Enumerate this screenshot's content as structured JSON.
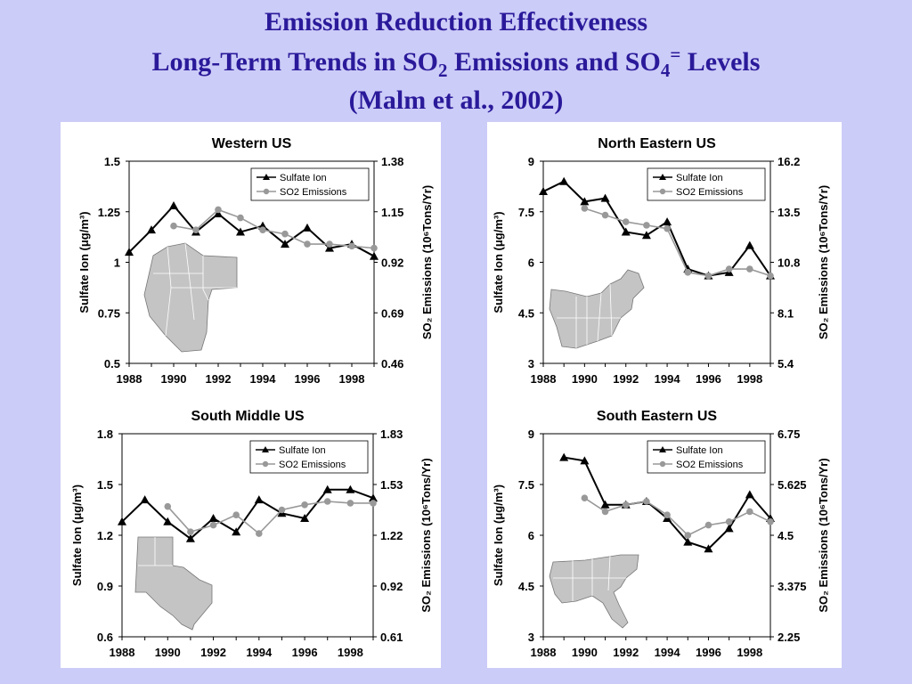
{
  "slide": {
    "title_line1": "Emission Reduction Effectiveness",
    "title_line2_a": "Long-Term Trends in SO",
    "title_line2_sub1": "2",
    "title_line2_b": " Emissions and SO",
    "title_line2_sub2": "4",
    "title_line2_sup": "=",
    "title_line2_c": " Levels",
    "title_line3": "(Malm et al., 2002)"
  },
  "chart_data": [
    {
      "type": "line",
      "title": "Western US",
      "ylabel": "Sulfate Ion (μg/m³)",
      "y2label": "SO₂ Emissions (10⁶Tons/Yr)",
      "ylim": [
        0.5,
        1.5
      ],
      "yticks": [
        "0.5",
        "0.75",
        "1",
        "1.25",
        "1.5"
      ],
      "y2ticks": [
        "0.46",
        "0.69",
        "0.92",
        "1.15",
        "1.38"
      ],
      "xlim": [
        1988,
        1999
      ],
      "xticks": [
        "1988",
        "1990",
        "1992",
        "1994",
        "1996",
        "1998"
      ],
      "legend": "top-right",
      "map_region": "western",
      "series": [
        {
          "name": "Sulfate Ion",
          "color": "#000000",
          "marker": "triangle",
          "axis": "left",
          "x": [
            1988,
            1989,
            1990,
            1991,
            1992,
            1993,
            1994,
            1995,
            1996,
            1997,
            1998,
            1999
          ],
          "values": [
            1.05,
            1.16,
            1.28,
            1.15,
            1.24,
            1.15,
            1.18,
            1.09,
            1.17,
            1.07,
            1.09,
            1.03
          ]
        },
        {
          "name": "SO2 Emissions",
          "color": "#999999",
          "marker": "circle",
          "axis": "left",
          "x": [
            1990,
            1991,
            1992,
            1993,
            1994,
            1995,
            1996,
            1997,
            1998,
            1999
          ],
          "values": [
            1.18,
            1.16,
            1.26,
            1.22,
            1.16,
            1.14,
            1.09,
            1.09,
            1.08,
            1.07
          ]
        }
      ]
    },
    {
      "type": "line",
      "title": "North Eastern US",
      "ylabel": "Sulfate Ion (μg/m³)",
      "y2label": "SO₂ Emissions (10⁶Tons/Yr)",
      "ylim": [
        3,
        9
      ],
      "yticks": [
        "3",
        "4.5",
        "6",
        "7.5",
        "9"
      ],
      "y2ticks": [
        "5.4",
        "8.1",
        "10.8",
        "13.5",
        "16.2"
      ],
      "xlim": [
        1988,
        1999
      ],
      "xticks": [
        "1988",
        "1990",
        "1992",
        "1994",
        "1996",
        "1998"
      ],
      "legend": "top-right",
      "map_region": "northeast",
      "series": [
        {
          "name": "Sulfate Ion",
          "color": "#000000",
          "marker": "triangle",
          "axis": "left",
          "x": [
            1988,
            1989,
            1990,
            1991,
            1992,
            1993,
            1994,
            1995,
            1996,
            1997,
            1998,
            1999
          ],
          "values": [
            8.1,
            8.4,
            7.8,
            7.9,
            6.9,
            6.8,
            7.2,
            5.8,
            5.6,
            5.7,
            6.5,
            5.6
          ]
        },
        {
          "name": "SO2 Emissions",
          "color": "#999999",
          "marker": "circle",
          "axis": "left",
          "x": [
            1990,
            1991,
            1992,
            1993,
            1994,
            1995,
            1996,
            1997,
            1998,
            1999
          ],
          "values": [
            7.6,
            7.4,
            7.2,
            7.1,
            7.0,
            5.7,
            5.6,
            5.8,
            5.8,
            5.6
          ]
        }
      ]
    },
    {
      "type": "line",
      "title": "South Middle US",
      "ylabel": "Sulfate Ion (μg/m³)",
      "y2label": "SO₂ Emissions (10⁶Tons/Yr)",
      "ylim": [
        0.6,
        1.8
      ],
      "yticks": [
        "0.6",
        "0.9",
        "1.2",
        "1.5",
        "1.8"
      ],
      "y2ticks": [
        "0.61",
        "0.92",
        "1.22",
        "1.53",
        "1.83"
      ],
      "xlim": [
        1988,
        1999
      ],
      "xticks": [
        "1988",
        "1990",
        "1992",
        "1994",
        "1996",
        "1998"
      ],
      "legend": "top-right",
      "map_region": "southmiddle",
      "series": [
        {
          "name": "Sulfate Ion",
          "color": "#000000",
          "marker": "triangle",
          "axis": "left",
          "x": [
            1988,
            1989,
            1990,
            1991,
            1992,
            1993,
            1994,
            1995,
            1996,
            1997,
            1998,
            1999
          ],
          "values": [
            1.28,
            1.41,
            1.28,
            1.18,
            1.3,
            1.22,
            1.41,
            1.33,
            1.3,
            1.47,
            1.47,
            1.42
          ]
        },
        {
          "name": "SO2 Emissions",
          "color": "#999999",
          "marker": "circle",
          "axis": "left",
          "x": [
            1990,
            1991,
            1992,
            1993,
            1994,
            1995,
            1996,
            1997,
            1998,
            1999
          ],
          "values": [
            1.37,
            1.22,
            1.26,
            1.32,
            1.21,
            1.35,
            1.38,
            1.4,
            1.39,
            1.39
          ]
        }
      ]
    },
    {
      "type": "line",
      "title": "South Eastern US",
      "ylabel": "Sulfate Ion (μg/m³)",
      "y2label": "SO₂ Emissions (10⁶Tons/Yr)",
      "ylim": [
        3,
        9
      ],
      "yticks": [
        "3",
        "4.5",
        "6",
        "7.5",
        "9"
      ],
      "y2ticks": [
        "2.25",
        "3.375",
        "4.5",
        "5.625",
        "6.75"
      ],
      "xlim": [
        1988,
        1999
      ],
      "xticks": [
        "1988",
        "1990",
        "1992",
        "1994",
        "1996",
        "1998"
      ],
      "legend": "top-right",
      "map_region": "southeast",
      "series": [
        {
          "name": "Sulfate Ion",
          "color": "#000000",
          "marker": "triangle",
          "axis": "left",
          "x": [
            1989,
            1990,
            1991,
            1992,
            1993,
            1994,
            1995,
            1996,
            1997,
            1998,
            1999
          ],
          "values": [
            8.3,
            8.2,
            6.9,
            6.9,
            7.0,
            6.5,
            5.8,
            5.6,
            6.2,
            7.2,
            6.5
          ]
        },
        {
          "name": "SO2 Emissions",
          "color": "#999999",
          "marker": "circle",
          "axis": "left",
          "x": [
            1990,
            1991,
            1992,
            1993,
            1994,
            1995,
            1996,
            1997,
            1998,
            1999
          ],
          "values": [
            7.1,
            6.7,
            6.9,
            7.0,
            6.6,
            6.0,
            6.3,
            6.4,
            6.7,
            6.4
          ]
        }
      ]
    }
  ]
}
